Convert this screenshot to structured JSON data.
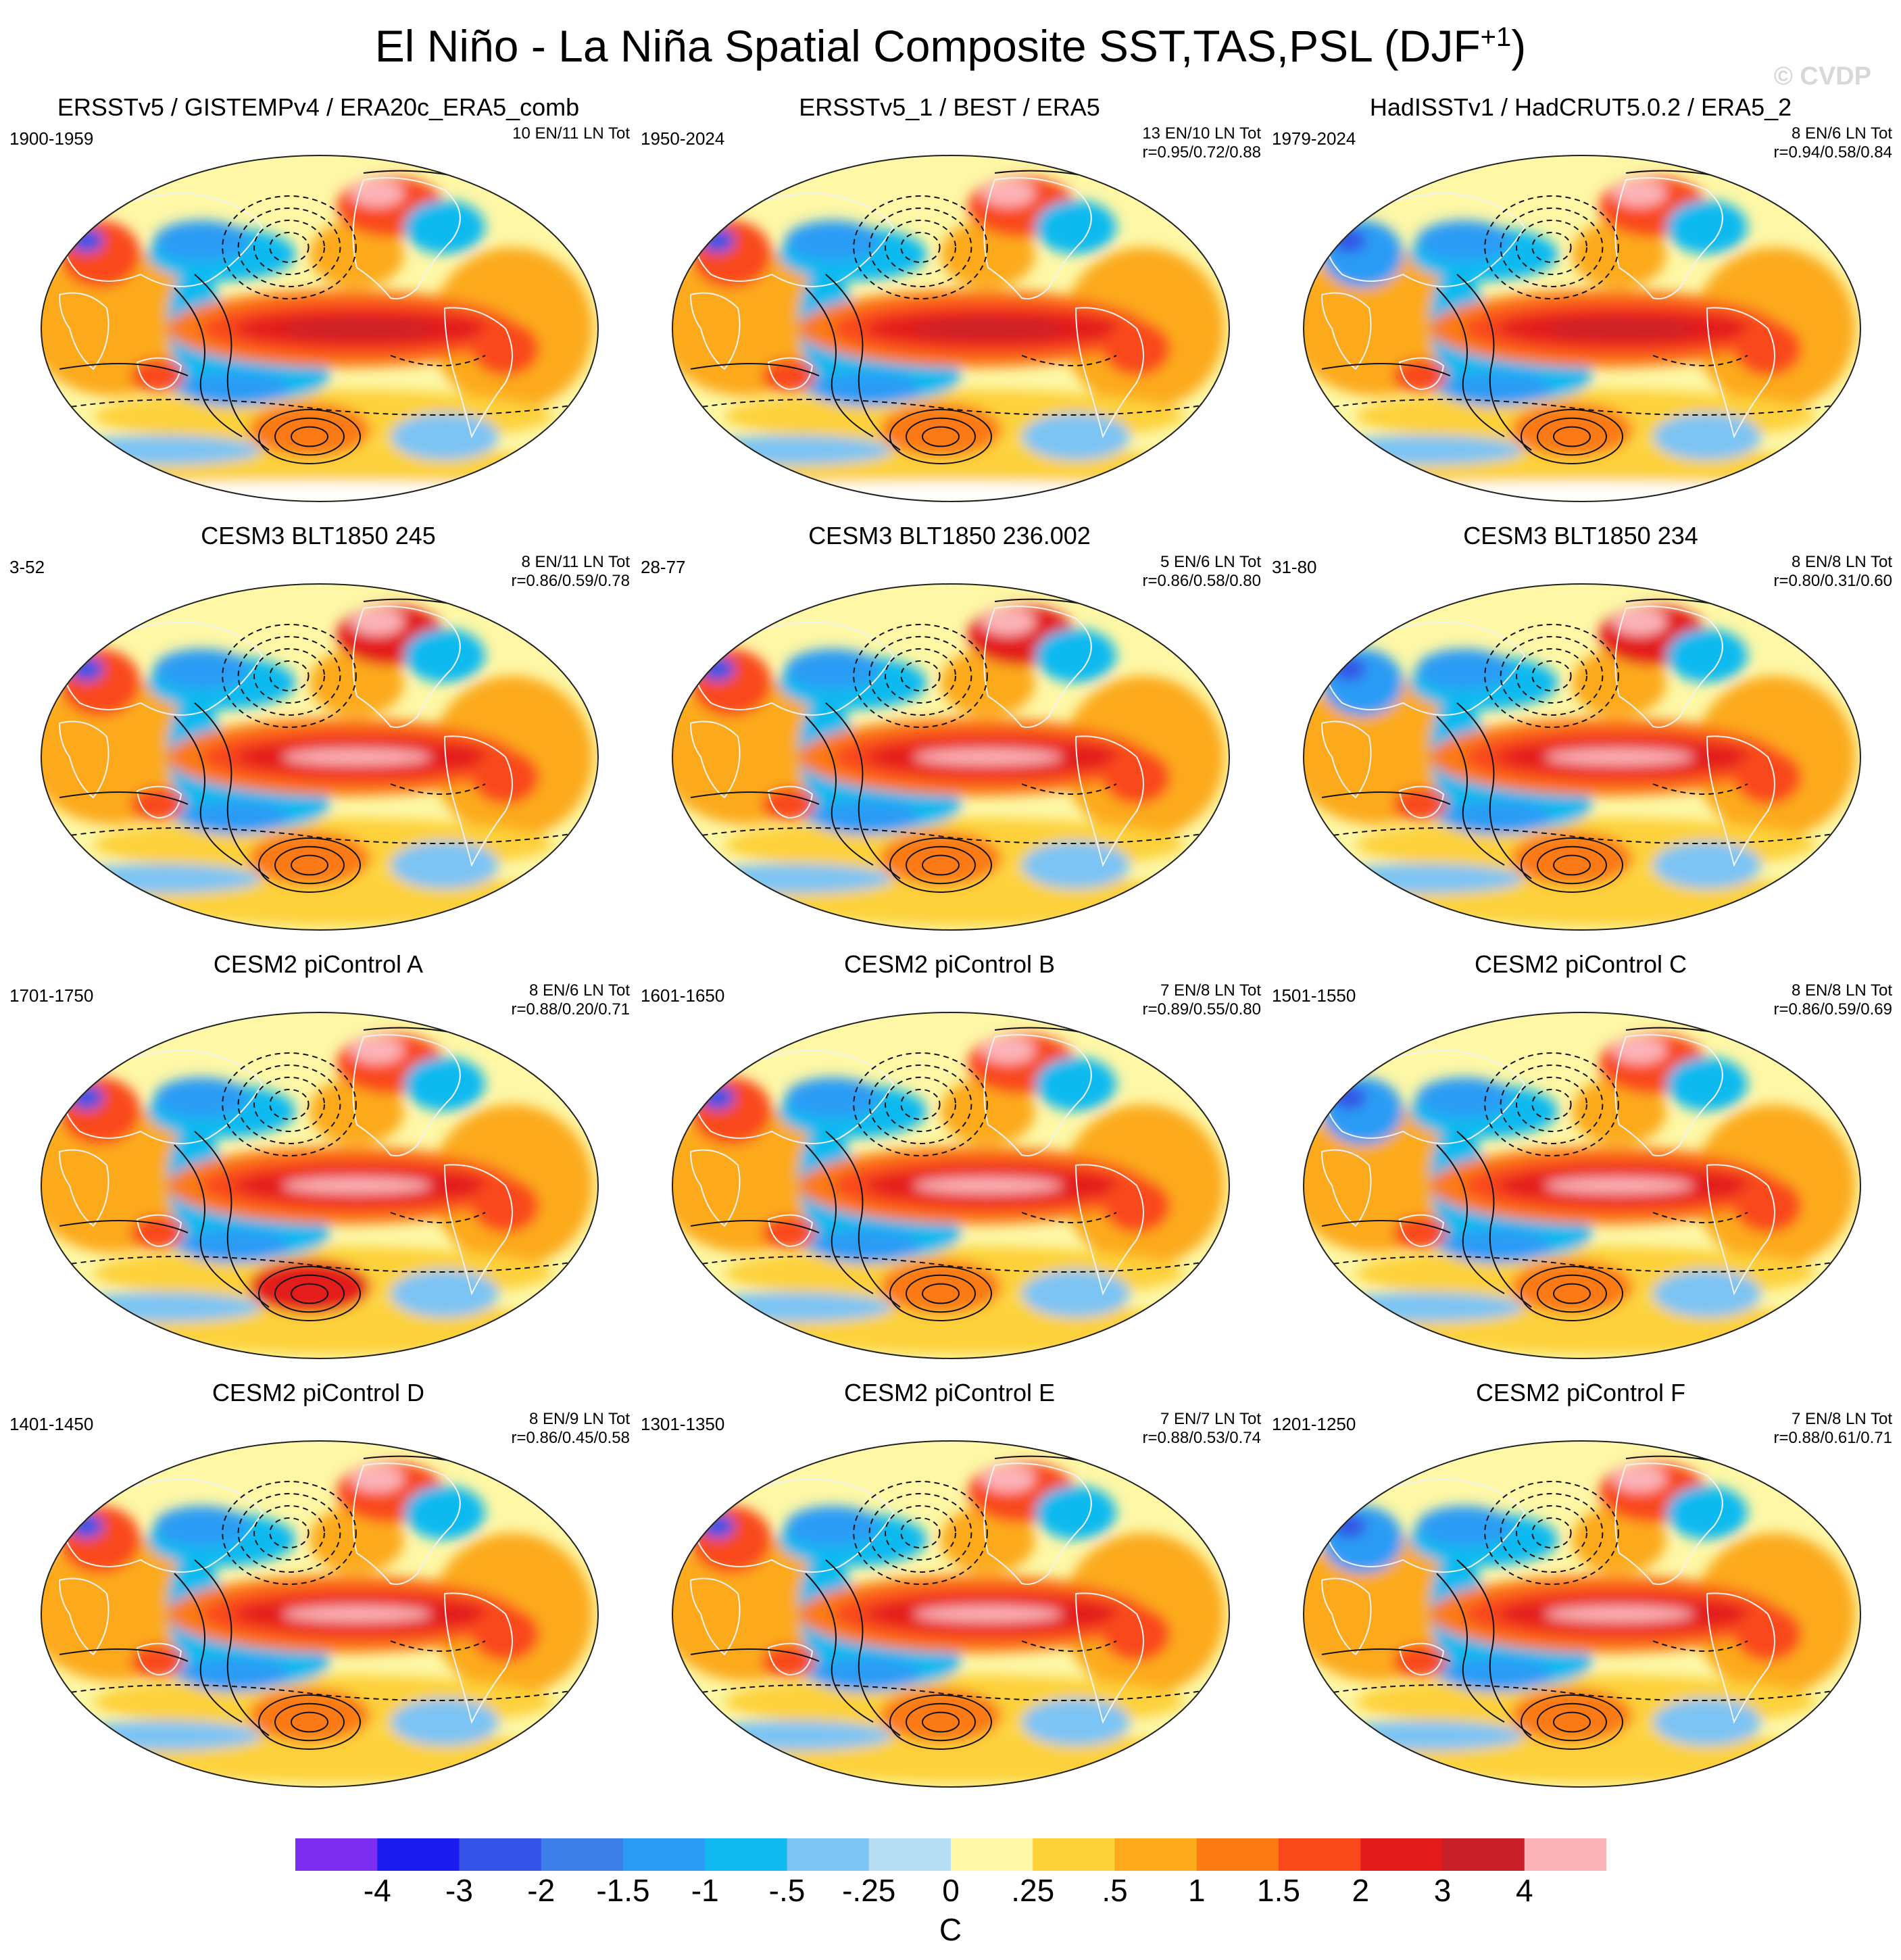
{
  "title": {
    "text": "El Niño - La Niña Spatial Composite SST,TAS,PSL (DJF",
    "sup": "+1",
    "close": ")"
  },
  "watermark": "© CVDP",
  "colors": {
    "palette": [
      "#7b2df0",
      "#1c1cf0",
      "#3253e6",
      "#3c7fe8",
      "#2b9cf5",
      "#11baf0",
      "#7cc4f4",
      "#b5def4",
      "#fdf7a6",
      "#fdd13a",
      "#fcaa1c",
      "#fb7a12",
      "#f9481a",
      "#e31a1c",
      "#c8202a",
      "#fcb4b8"
    ],
    "coast": "#f2f2f2",
    "contour": "#111111"
  },
  "colorbar": {
    "labels": [
      "-4",
      "-3",
      "-2",
      "-1.5",
      "-1",
      "-.5",
      "-.25",
      "0",
      ".25",
      ".5",
      "1",
      "1.5",
      "2",
      "3",
      "4"
    ],
    "units": "C"
  },
  "panels": [
    {
      "title": "ERSSTv5 / GISTEMPv4 / ERA20c_ERA5_comb",
      "period": "1900-1959",
      "stats1": "10 EN/11 LN Tot",
      "stats2": ""
    },
    {
      "title": "ERSSTv5_1 / BEST / ERA5",
      "period": "1950-2024",
      "stats1": "13 EN/10 LN Tot",
      "stats2": "r=0.95/0.72/0.88"
    },
    {
      "title": "HadISSTv1 / HadCRUT5.0.2 / ERA5_2",
      "period": "1979-2024",
      "stats1": "8 EN/6 LN Tot",
      "stats2": "r=0.94/0.58/0.84"
    },
    {
      "title": "CESM3 BLT1850 245",
      "period": "3-52",
      "stats1": "8 EN/11 LN Tot",
      "stats2": "r=0.86/0.59/0.78"
    },
    {
      "title": "CESM3 BLT1850 236.002",
      "period": "28-77",
      "stats1": "5 EN/6 LN Tot",
      "stats2": "r=0.86/0.58/0.80"
    },
    {
      "title": "CESM3 BLT1850 234",
      "period": "31-80",
      "stats1": "8 EN/8 LN Tot",
      "stats2": "r=0.80/0.31/0.60"
    },
    {
      "title": "CESM2 piControl A",
      "period": "1701-1750",
      "stats1": "8 EN/6 LN Tot",
      "stats2": "r=0.88/0.20/0.71"
    },
    {
      "title": "CESM2 piControl B",
      "period": "1601-1650",
      "stats1": "7 EN/8 LN Tot",
      "stats2": "r=0.89/0.55/0.80"
    },
    {
      "title": "CESM2 piControl C",
      "period": "1501-1550",
      "stats1": "8 EN/8 LN Tot",
      "stats2": "r=0.86/0.59/0.69"
    },
    {
      "title": "CESM2 piControl D",
      "period": "1401-1450",
      "stats1": "8 EN/9 LN Tot",
      "stats2": "r=0.86/0.45/0.58"
    },
    {
      "title": "CESM2 piControl E",
      "period": "1301-1350",
      "stats1": "7 EN/7 LN Tot",
      "stats2": "r=0.88/0.53/0.74"
    },
    {
      "title": "CESM2 piControl F",
      "period": "1201-1250",
      "stats1": "7 EN/8 LN Tot",
      "stats2": "r=0.88/0.61/0.71"
    }
  ]
}
